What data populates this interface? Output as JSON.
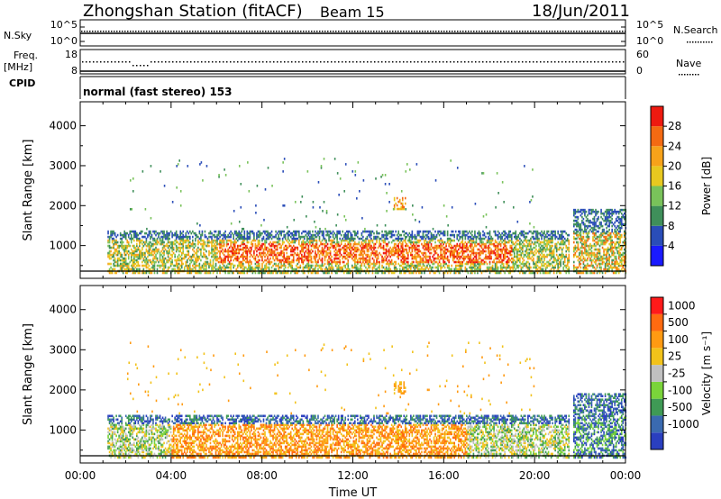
{
  "header": {
    "title": "Zhongshan Station (fitACF)",
    "beam": "Beam 15",
    "date": "18/Jun/2011"
  },
  "left_labels": {
    "nsky": "N.Sky",
    "freq": "Freq.",
    "mhz": "[MHz]",
    "cpid": "CPID"
  },
  "right_labels": {
    "nsearch": "N.Search",
    "nave": "Nave"
  },
  "noise_panel": {
    "left_ticks": [
      "10^5",
      "10^0"
    ],
    "right_ticks": [
      "10^5",
      "10^0"
    ]
  },
  "freq_panel": {
    "left_ticks": [
      "18",
      "8"
    ],
    "right_ticks": [
      "60",
      "0"
    ]
  },
  "cpid_text": "normal (fast stereo) 153",
  "colors": {
    "power_scale": [
      "#1a1aff",
      "#2a4db8",
      "#3f8f5a",
      "#79c25a",
      "#e8c81f",
      "#f7a21a",
      "#f46a12",
      "#ee1a10"
    ],
    "velocity_scale": [
      "#ff1a1a",
      "#ff6a10",
      "#ff9a12",
      "#f2c21a",
      "#c0c0c0",
      "#7ad43a",
      "#3f9a55",
      "#3a6ab0",
      "#2a3fbf"
    ],
    "ground_scatter": "#9e9e9e"
  },
  "chart_data": [
    {
      "type": "heatmap",
      "name": "power",
      "xlabel": "Time UT",
      "ylabel": "Slant Range [km]",
      "colorbar_label": "Power [dB]",
      "colorbar_ticks": [
        "4",
        "8",
        "12",
        "16",
        "20",
        "24",
        "28"
      ],
      "xlim": [
        0,
        24
      ],
      "ylim": [
        180,
        4600
      ],
      "y_ticks": [
        "1000",
        "2000",
        "3000",
        "4000"
      ],
      "note_bands": [
        {
          "t0": 1.0,
          "t1": 21.6,
          "r0": 300,
          "r1": 1400
        },
        {
          "t0": 13.8,
          "t1": 14.3,
          "r0": 1900,
          "r1": 2200
        },
        {
          "t0": 21.7,
          "t1": 24.0,
          "r0": 300,
          "r1": 2000
        }
      ]
    },
    {
      "type": "heatmap",
      "name": "velocity",
      "xlabel": "Time UT",
      "ylabel": "Slant Range [km]",
      "colorbar_label": "Velocity [m s⁻¹]",
      "colorbar_ticks": [
        "1000",
        "500",
        "100",
        "25",
        "-25",
        "-100",
        "-500",
        "-1000"
      ],
      "xlim": [
        0,
        24
      ],
      "ylim": [
        180,
        4600
      ],
      "y_ticks": [
        "1000",
        "2000",
        "3000",
        "4000"
      ]
    }
  ],
  "x_ticks": [
    "00:00",
    "04:00",
    "08:00",
    "12:00",
    "16:00",
    "20:00",
    "00:00"
  ],
  "x_axis_label": "Time UT"
}
